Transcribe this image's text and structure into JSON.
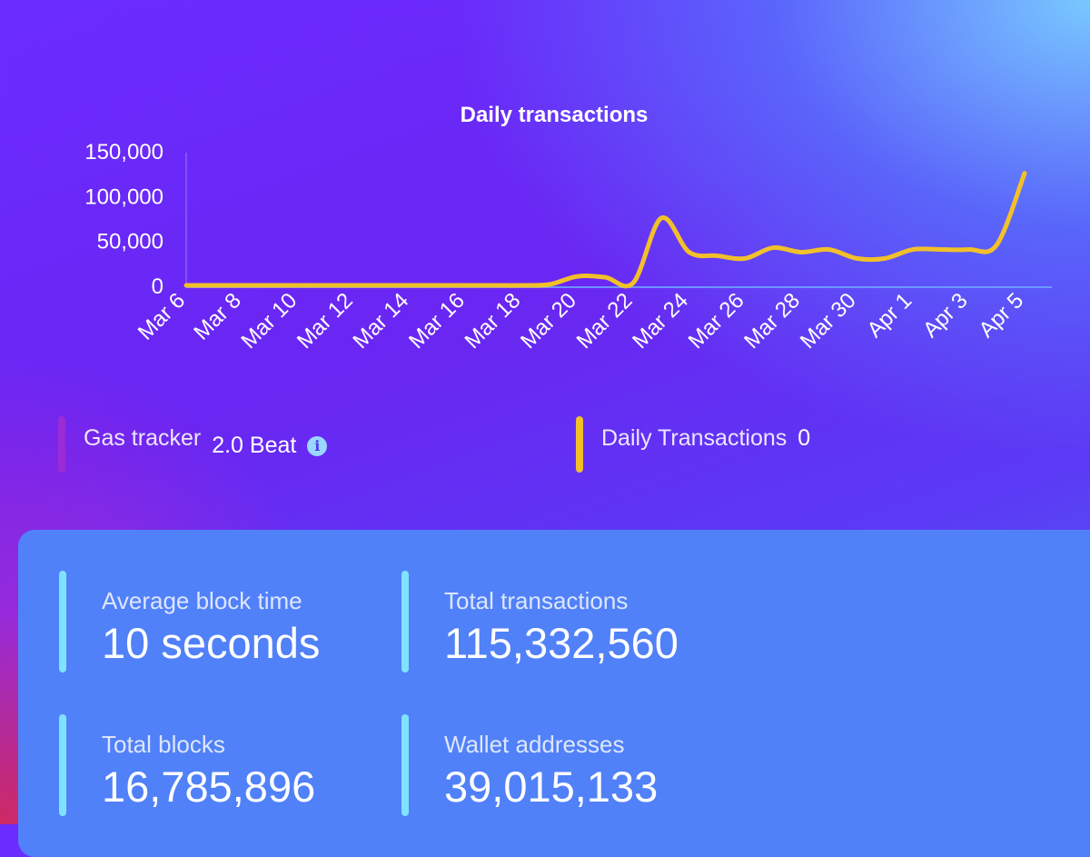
{
  "chart": {
    "title": "Daily transactions"
  },
  "chart_data": {
    "type": "line",
    "title": "Daily transactions",
    "xlabel": "",
    "ylabel": "",
    "ylim": [
      0,
      150000
    ],
    "yticks": [
      "150,000",
      "100,000",
      "50,000",
      "0"
    ],
    "xtick_labels": [
      "Mar 6",
      "Mar 8",
      "Mar 10",
      "Mar 12",
      "Mar 14",
      "Mar 16",
      "Mar 18",
      "Mar 20",
      "Mar 22",
      "Mar 24",
      "Mar 26",
      "Mar 28",
      "Mar 30",
      "Apr 1",
      "Apr 3",
      "Apr 5"
    ],
    "grid": false,
    "legend": false,
    "line_color": "#f2c02a",
    "x": [
      "Mar 6",
      "Mar 7",
      "Mar 8",
      "Mar 9",
      "Mar 10",
      "Mar 11",
      "Mar 12",
      "Mar 13",
      "Mar 14",
      "Mar 15",
      "Mar 16",
      "Mar 17",
      "Mar 18",
      "Mar 19",
      "Mar 20",
      "Mar 21",
      "Mar 22",
      "Mar 23",
      "Mar 24",
      "Mar 25",
      "Mar 26",
      "Mar 27",
      "Mar 28",
      "Mar 29",
      "Mar 30",
      "Mar 31",
      "Apr 1",
      "Apr 2",
      "Apr 3",
      "Apr 4",
      "Apr 5"
    ],
    "values": [
      0,
      0,
      0,
      0,
      0,
      0,
      0,
      0,
      0,
      0,
      0,
      0,
      0,
      1000,
      10000,
      9000,
      3000,
      75000,
      37000,
      33000,
      30000,
      42000,
      37000,
      40000,
      30000,
      30000,
      40000,
      40000,
      40000,
      45000,
      125000
    ]
  },
  "legend": {
    "gas": {
      "label": "Gas tracker",
      "value": "2.0 Beat",
      "icon": "info-icon",
      "bar_color": "#9b2bd6"
    },
    "daily": {
      "label": "Daily Transactions",
      "value": "0",
      "bar_color": "#f2c02a"
    }
  },
  "stats": {
    "avg_block_time": {
      "label": "Average block time",
      "value": "10 seconds"
    },
    "total_transactions": {
      "label": "Total transactions",
      "value": "115,332,560"
    },
    "total_blocks": {
      "label": "Total blocks",
      "value": "16,785,896"
    },
    "wallet_addresses": {
      "label": "Wallet addresses",
      "value": "39,015,133"
    }
  },
  "colors": {
    "panel": "#5181f8",
    "stat_bar": "#7fe3ff"
  }
}
